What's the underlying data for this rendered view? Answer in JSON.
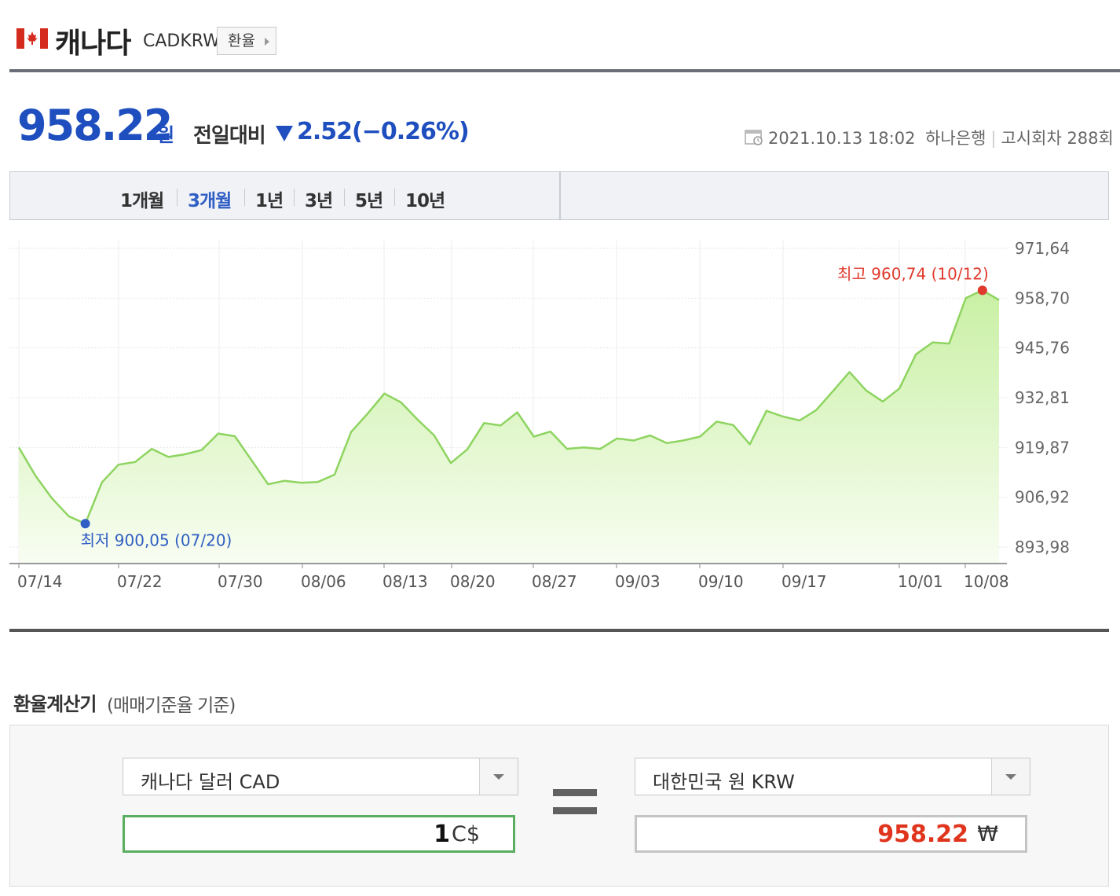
{
  "header": {
    "country": "캐나다",
    "code": "CADKRW",
    "fx_button": "환율",
    "flag_icon": "canada-flag-icon"
  },
  "price": {
    "value": "958.22",
    "unit": "원",
    "compare_label": "전일대비",
    "change": "2.52(−0.26%)",
    "direction": "down",
    "datetime": "2021.10.13 18:02",
    "bank": "하나은행",
    "notice": "고시회차 288회"
  },
  "tabs": [
    {
      "label": "1개월",
      "active": false
    },
    {
      "label": "3개월",
      "active": true
    },
    {
      "label": "1년",
      "active": false
    },
    {
      "label": "3년",
      "active": false
    },
    {
      "label": "5년",
      "active": false
    },
    {
      "label": "10년",
      "active": false
    }
  ],
  "chart_data": {
    "type": "area",
    "title": "",
    "xlabel": "",
    "ylabel": "",
    "x_ticks": [
      "07/14",
      "07/22",
      "07/30",
      "08/06",
      "08/13",
      "08/20",
      "08/27",
      "09/03",
      "09/10",
      "09/17",
      "10/01",
      "10/08"
    ],
    "y_ticks": [
      "971.64",
      "958.70",
      "945.76",
      "932.81",
      "919.87",
      "906.92",
      "893.98"
    ],
    "ylim": [
      893.98,
      971.64
    ],
    "grid": true,
    "series": [
      {
        "values": [
          919.9,
          912.5,
          906.6,
          902.0,
          900.05,
          910.8,
          915.4,
          916.1,
          919.5,
          917.4,
          918.1,
          919.2,
          923.5,
          922.8,
          916.6,
          910.3,
          911.2,
          910.7,
          910.9,
          912.8,
          923.9,
          928.7,
          933.9,
          931.6,
          927.1,
          923.0,
          915.8,
          919.4,
          926.2,
          925.6,
          929.0,
          922.7,
          924.0,
          919.5,
          919.9,
          919.5,
          922.2,
          921.7,
          923.0,
          921.0,
          921.7,
          922.7,
          926.6,
          925.7,
          920.7,
          929.4,
          927.9,
          926.9,
          929.6,
          934.5,
          939.5,
          934.7,
          931.8,
          935.2,
          944.1,
          947.2,
          946.9,
          958.7,
          960.74,
          958.22
        ]
      }
    ],
    "annotations": {
      "high": {
        "label": "최고",
        "value": "960.74",
        "date": "(10/12)"
      },
      "low": {
        "label": "최저",
        "value": "900.05",
        "date": "(07/20)"
      }
    },
    "colors": {
      "line": "#8ed460",
      "fill_top": "#c9f0a4",
      "fill_bottom": "#f8fdf2",
      "high": "#e03a2d",
      "low": "#2f5ec4"
    }
  },
  "calculator": {
    "title": "환율계산기",
    "subtitle": "(매매기준율 기준)",
    "from_currency": "캐나다 달러 CAD",
    "to_currency": "대한민국 원 KRW",
    "from_amount": "1",
    "from_symbol": "C$",
    "to_amount": "958.22",
    "to_symbol": "₩"
  }
}
